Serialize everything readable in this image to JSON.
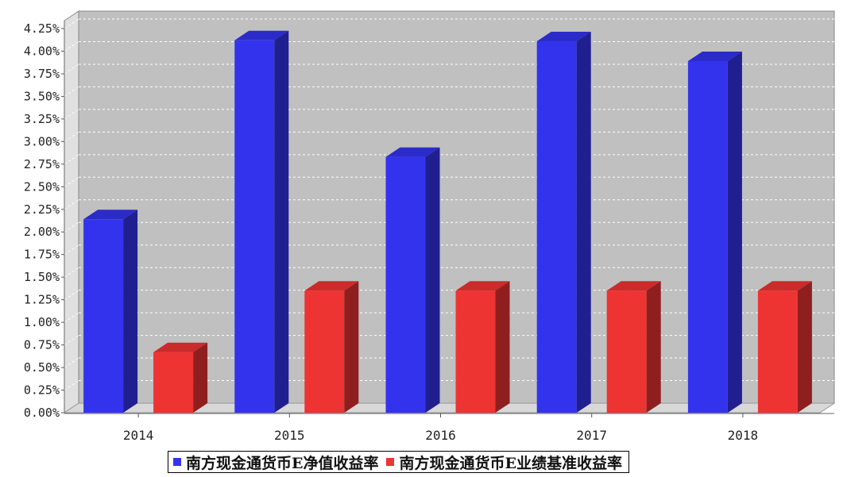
{
  "chart_data": {
    "type": "bar",
    "title": "",
    "xlabel": "",
    "ylabel": "",
    "categories": [
      "2014",
      "2015",
      "2016",
      "2017",
      "2018"
    ],
    "series": [
      {
        "name": "南方现金通货币E净值收益率",
        "color": "#3333ee",
        "values": [
          2.14,
          4.12,
          2.83,
          4.11,
          3.89
        ]
      },
      {
        "name": "南方现金通货币E业绩基准收益率",
        "color": "#ee3333",
        "values": [
          0.67,
          1.35,
          1.35,
          1.35,
          1.35
        ]
      }
    ],
    "ylim": [
      0,
      4.25
    ],
    "ytick_step": 0.25,
    "ytick_labels": [
      "0.00%",
      "0.25%",
      "0.50%",
      "0.75%",
      "1.00%",
      "1.25%",
      "1.50%",
      "1.75%",
      "2.00%",
      "2.25%",
      "2.50%",
      "2.75%",
      "3.00%",
      "3.25%",
      "3.50%",
      "3.75%",
      "4.00%",
      "4.25%"
    ],
    "grid": true,
    "legend_position": "bottom",
    "style": "3d",
    "plot_background": "#c0c0c0"
  }
}
